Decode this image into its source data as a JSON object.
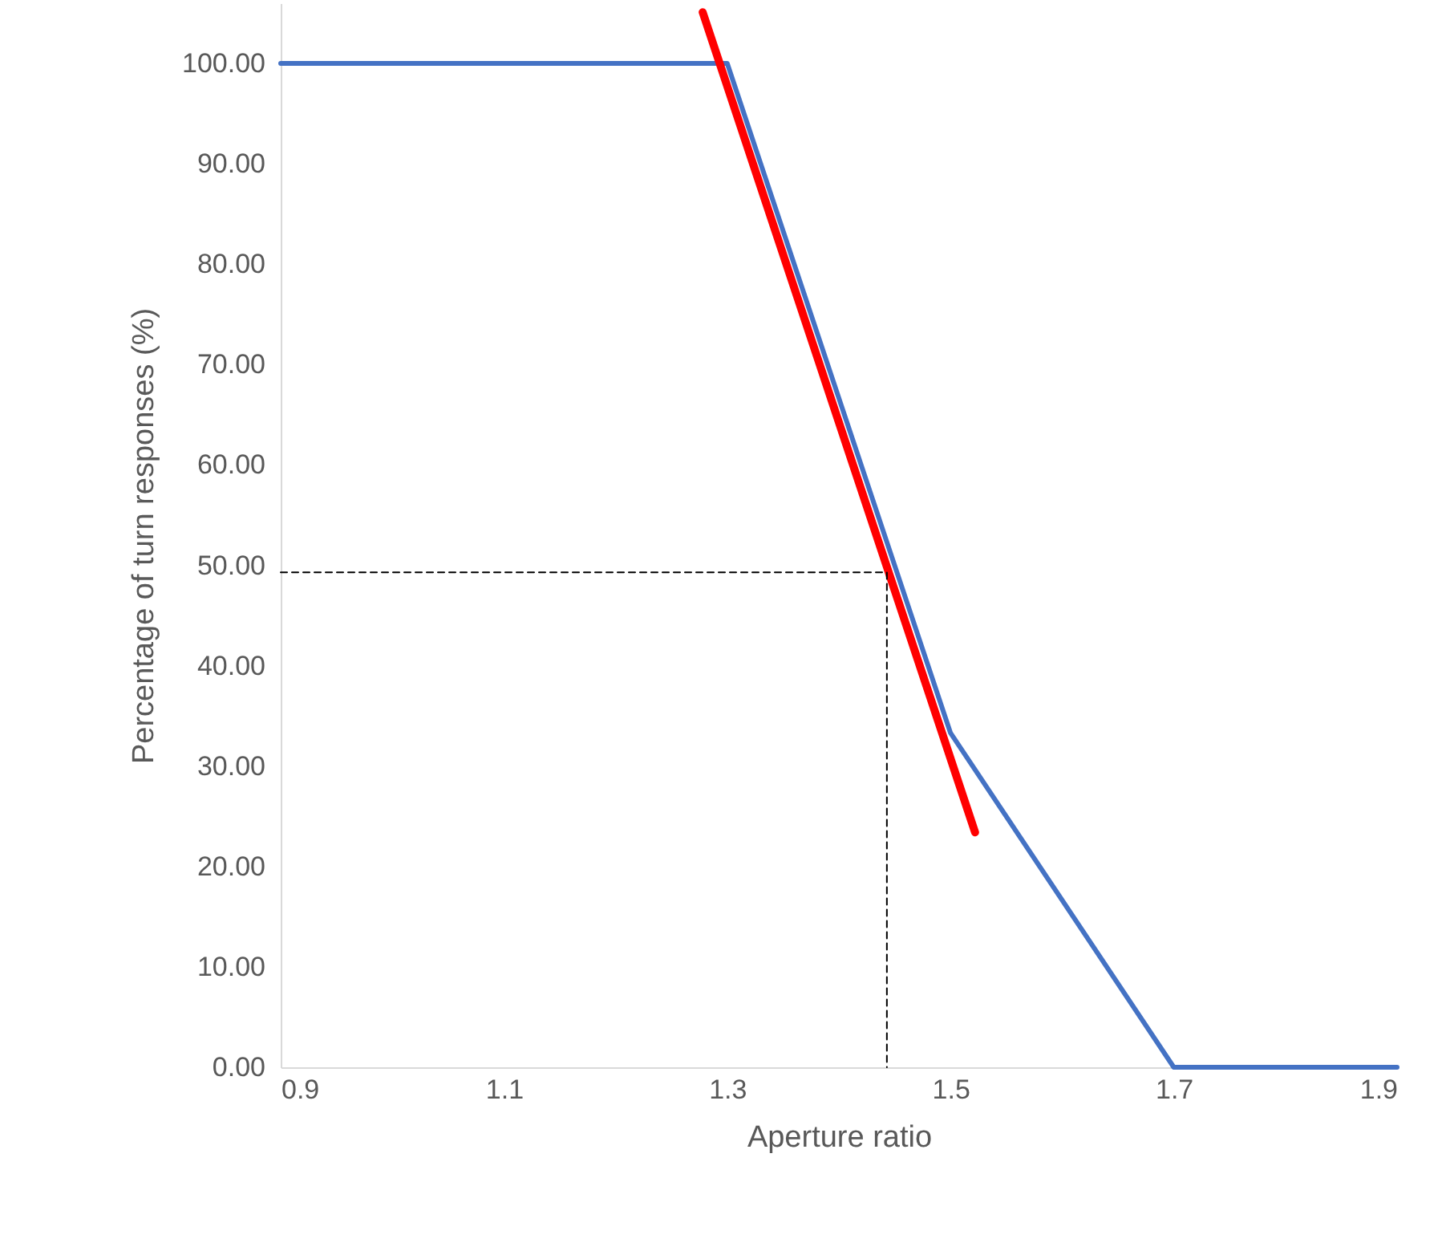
{
  "chart_data": {
    "type": "line",
    "xlabel": "Aperture ratio",
    "ylabel": "Percentage of turn responses (%)",
    "xlim": [
      0.9,
      1.9
    ],
    "xticks": [
      0.9,
      1.1,
      1.3,
      1.5,
      1.7,
      1.9
    ],
    "ylim": [
      0,
      106
    ],
    "yticks": [
      {
        "value": 0,
        "label": "0.00"
      },
      {
        "value": 10,
        "label": "10.00"
      },
      {
        "value": 20,
        "label": "20.00"
      },
      {
        "value": 30,
        "label": "30.00"
      },
      {
        "value": 40,
        "label": "40.00"
      },
      {
        "value": 50,
        "label": "50.00"
      },
      {
        "value": 60,
        "label": "60.00"
      },
      {
        "value": 70,
        "label": "70.00"
      },
      {
        "value": 80,
        "label": "80.00"
      },
      {
        "value": 90,
        "label": "90.00"
      },
      {
        "value": 100,
        "label": "100.00"
      }
    ],
    "grid": false,
    "legend": false,
    "marker": "none",
    "series": [
      {
        "color": "#4472c4",
        "x": [
          0.9,
          1.3,
          1.5,
          1.7,
          1.9
        ],
        "values": [
          100,
          100,
          33.3,
          0,
          0
        ],
        "line_style": "solid"
      },
      {
        "type": "line",
        "color": "#ff0000",
        "x": [
          1.278,
          1.522
        ],
        "values": [
          105.1,
          23.4
        ],
        "line_style": "solid"
      },
      {
        "type": "line",
        "color": "#000000",
        "x": [
          0.9,
          1.443,
          1.443
        ],
        "values": [
          49.3,
          49.3,
          0
        ],
        "line_style": "dashed"
      }
    ]
  }
}
